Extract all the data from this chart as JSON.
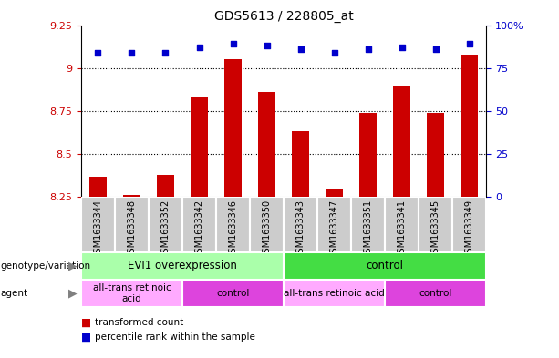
{
  "title": "GDS5613 / 228805_at",
  "samples": [
    "GSM1633344",
    "GSM1633348",
    "GSM1633352",
    "GSM1633342",
    "GSM1633346",
    "GSM1633350",
    "GSM1633343",
    "GSM1633347",
    "GSM1633351",
    "GSM1633341",
    "GSM1633345",
    "GSM1633349"
  ],
  "bar_values": [
    8.37,
    8.26,
    8.38,
    8.83,
    9.05,
    8.86,
    8.63,
    8.3,
    8.74,
    8.9,
    8.74,
    9.08
  ],
  "dot_values": [
    9.09,
    9.09,
    9.09,
    9.12,
    9.14,
    9.13,
    9.11,
    9.09,
    9.11,
    9.12,
    9.11,
    9.14
  ],
  "bar_color": "#cc0000",
  "dot_color": "#0000cc",
  "ylim": [
    8.25,
    9.25
  ],
  "y_ticks": [
    8.25,
    8.5,
    8.75,
    9.0,
    9.25
  ],
  "y_tick_labels": [
    "8.25",
    "8.5",
    "8.75",
    "9",
    "9.25"
  ],
  "right_y_labels": [
    "0",
    "25",
    "50",
    "75",
    "100%"
  ],
  "genotype_groups": [
    {
      "label": "EVI1 overexpression",
      "start": 0,
      "end": 6,
      "color": "#aaffaa"
    },
    {
      "label": "control",
      "start": 6,
      "end": 12,
      "color": "#44dd44"
    }
  ],
  "agent_groups": [
    {
      "label": "all-trans retinoic\nacid",
      "start": 0,
      "end": 3,
      "color": "#ffaaff"
    },
    {
      "label": "control",
      "start": 3,
      "end": 6,
      "color": "#dd44dd"
    },
    {
      "label": "all-trans retinoic acid",
      "start": 6,
      "end": 9,
      "color": "#ffaaff"
    },
    {
      "label": "control",
      "start": 9,
      "end": 12,
      "color": "#dd44dd"
    }
  ],
  "legend_items": [
    {
      "label": "transformed count",
      "color": "#cc0000"
    },
    {
      "label": "percentile rank within the sample",
      "color": "#0000cc"
    }
  ],
  "tick_color_left": "#cc0000",
  "tick_color_right": "#0000cc",
  "bg_color": "#ffffff",
  "sample_bg": "#cccccc",
  "plot_bg": "#ffffff"
}
